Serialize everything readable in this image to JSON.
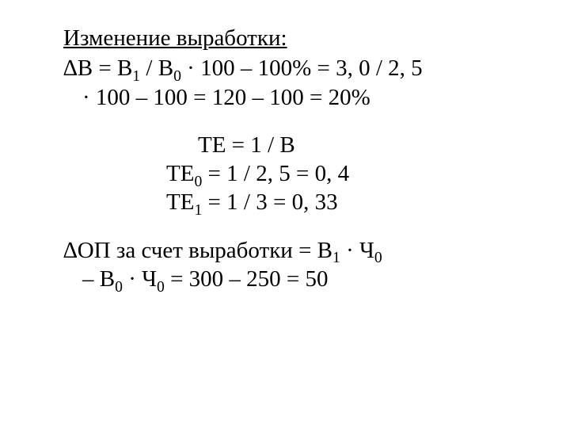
{
  "title": "Изменение выработки:",
  "block1": {
    "line1_a": "∆В = В",
    "line1_sub1": "1",
    "line1_b": " / В",
    "line1_sub2": "0",
    "line1_c": " · 100 – 100% = 3, 0 / 2, 5",
    "line2": "· 100 – 100 = 120 – 100 = 20%"
  },
  "block2": {
    "line1": "ТЕ = 1 / В",
    "line2_a": "ТЕ",
    "line2_sub": "0",
    "line2_b": " = 1 / 2, 5 = 0, 4",
    "line3_a": "ТЕ",
    "line3_sub": "1",
    "line3_b": " = 1 / 3 = 0, 33"
  },
  "block3": {
    "line1_a": "∆ОП за счет выработки = В",
    "line1_sub1": "1",
    "line1_b": " · Ч",
    "line1_sub2": "0",
    "line2_a": "– В",
    "line2_sub1": "0",
    "line2_b": " · Ч",
    "line2_sub2": "0",
    "line2_c": " = 300 – 250 = 50"
  },
  "colors": {
    "text": "#000000",
    "background": "#ffffff"
  },
  "font": {
    "family": "Times New Roman",
    "size_pt": 22
  }
}
